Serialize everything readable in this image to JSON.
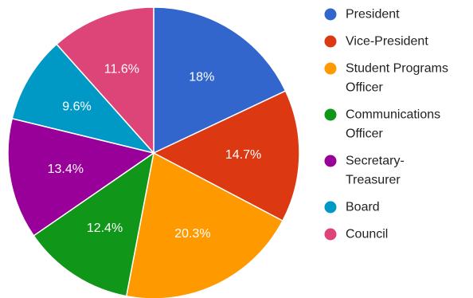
{
  "chart_data": {
    "type": "pie",
    "title": "",
    "slices": [
      {
        "label": "President",
        "label_lines": [
          "President"
        ],
        "value": 18,
        "display": "18%",
        "color": "#3366cc"
      },
      {
        "label": "Vice-President",
        "label_lines": [
          "Vice-President"
        ],
        "value": 14.7,
        "display": "14.7%",
        "color": "#dc3912"
      },
      {
        "label": "Student Programs Officer",
        "label_lines": [
          "Student Programs",
          "Officer"
        ],
        "value": 20.3,
        "display": "20.3%",
        "color": "#ff9900"
      },
      {
        "label": "Communications Officer",
        "label_lines": [
          "Communications",
          "Officer"
        ],
        "value": 12.4,
        "display": "12.4%",
        "color": "#109618"
      },
      {
        "label": "Secretary-Treasurer",
        "label_lines": [
          "Secretary-",
          "Treasurer"
        ],
        "value": 13.4,
        "display": "13.4%",
        "color": "#990099"
      },
      {
        "label": "Board",
        "label_lines": [
          "Board"
        ],
        "value": 9.6,
        "display": "9.6%",
        "color": "#0099c6"
      },
      {
        "label": "Council",
        "label_lines": [
          "Council"
        ],
        "value": 11.6,
        "display": "11.6%",
        "color": "#dd4477"
      }
    ],
    "legend_position": "right"
  }
}
